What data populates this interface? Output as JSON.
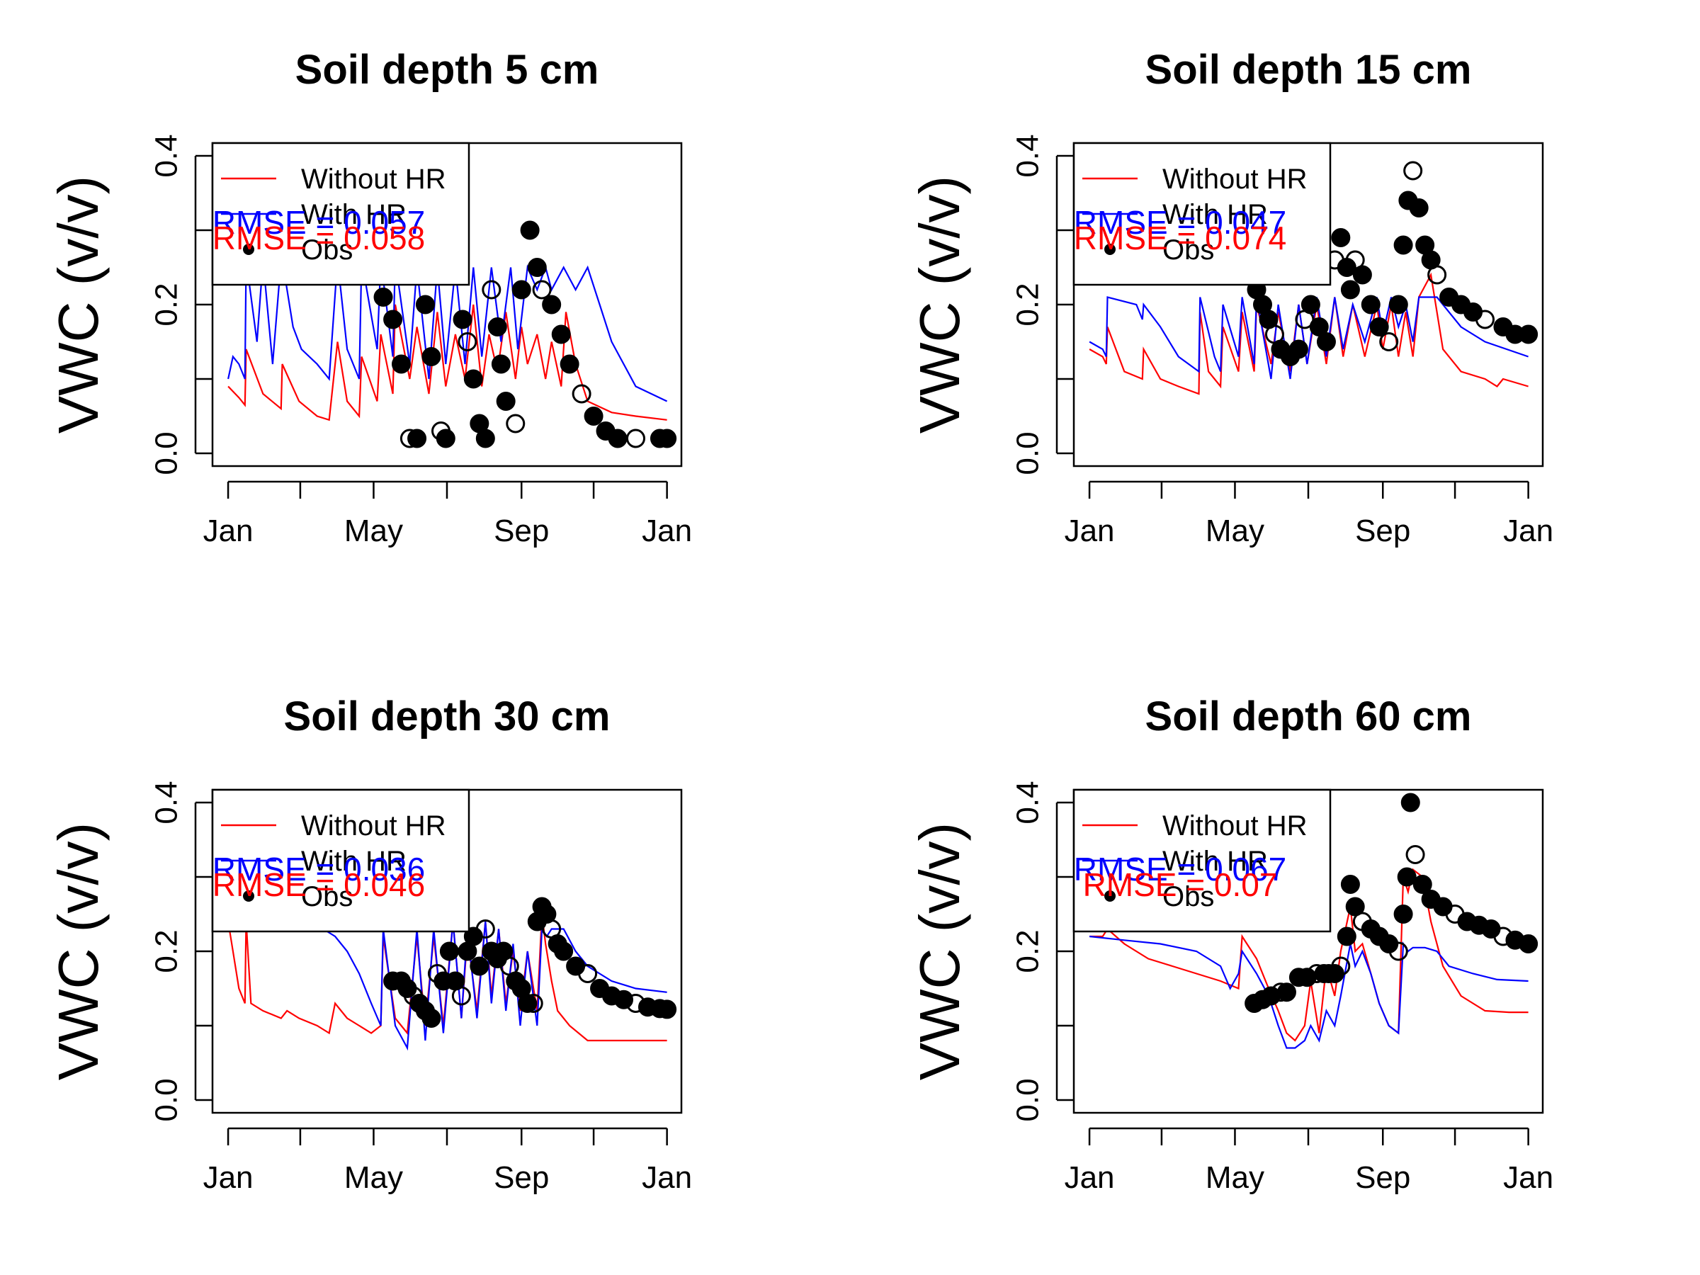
{
  "colors": {
    "without_hr": "#ff0000",
    "with_hr": "#0000ff",
    "obs": "#000000",
    "background": "#ffffff"
  },
  "legend": [
    "Without HR",
    "With HR",
    "Obs"
  ],
  "chart_data": [
    {
      "type": "line",
      "title": "Soil depth 5 cm",
      "ylabel": "VWC (v/v)",
      "xlabel": "",
      "x_ticks": [
        "Jan",
        "May",
        "Sep",
        "Jan"
      ],
      "y_ticks": [
        "0.0",
        "0.2",
        "0.4"
      ],
      "ylim": [
        0,
        0.4
      ],
      "rmse_labels": {
        "with_hr": "RMSE = 0.057",
        "without_hr": "RMSE = 0.058"
      },
      "series": [
        {
          "name": "Without HR",
          "color": "#ff0000",
          "x": [
            1,
            10,
            15,
            16,
            30,
            45,
            46,
            60,
            75,
            85,
            92,
            100,
            110,
            112,
            125,
            128,
            138,
            140,
            152,
            158,
            168,
            175,
            182,
            190,
            198,
            205,
            212,
            218,
            225,
            232,
            240,
            245,
            250,
            258,
            265,
            270,
            278,
            282,
            290,
            300,
            320,
            340,
            366
          ],
          "y": [
            0.09,
            0.075,
            0.065,
            0.14,
            0.08,
            0.06,
            0.12,
            0.07,
            0.05,
            0.045,
            0.15,
            0.07,
            0.05,
            0.13,
            0.07,
            0.16,
            0.08,
            0.2,
            0.1,
            0.17,
            0.08,
            0.19,
            0.09,
            0.16,
            0.1,
            0.2,
            0.09,
            0.16,
            0.11,
            0.19,
            0.1,
            0.17,
            0.12,
            0.16,
            0.1,
            0.15,
            0.09,
            0.19,
            0.12,
            0.07,
            0.055,
            0.05,
            0.045
          ]
        },
        {
          "name": "With HR",
          "color": "#0000ff",
          "x": [
            1,
            5,
            10,
            15,
            16,
            25,
            30,
            38,
            45,
            46,
            55,
            62,
            75,
            85,
            92,
            100,
            110,
            112,
            125,
            128,
            138,
            140,
            152,
            158,
            168,
            175,
            182,
            190,
            198,
            205,
            212,
            220,
            228,
            236,
            242,
            250,
            258,
            265,
            270,
            280,
            290,
            300,
            310,
            320,
            340,
            366
          ],
          "y": [
            0.1,
            0.13,
            0.12,
            0.1,
            0.26,
            0.15,
            0.26,
            0.12,
            0.26,
            0.26,
            0.17,
            0.14,
            0.12,
            0.1,
            0.26,
            0.14,
            0.1,
            0.26,
            0.14,
            0.26,
            0.13,
            0.26,
            0.12,
            0.25,
            0.1,
            0.25,
            0.12,
            0.25,
            0.12,
            0.25,
            0.13,
            0.25,
            0.15,
            0.25,
            0.14,
            0.25,
            0.22,
            0.25,
            0.22,
            0.25,
            0.22,
            0.25,
            0.2,
            0.15,
            0.09,
            0.07
          ]
        },
        {
          "name": "Obs",
          "color": "#000000",
          "marker": "circle",
          "x": [
            130,
            138,
            145,
            152,
            158,
            165,
            170,
            178,
            182,
            190,
            196,
            200,
            205,
            210,
            215,
            220,
            225,
            228,
            232,
            240,
            245,
            252,
            258,
            262,
            270,
            278,
            285,
            295,
            305,
            315,
            325,
            340,
            360,
            366
          ],
          "y": [
            0.21,
            0.18,
            0.12,
            0.02,
            0.02,
            0.2,
            0.13,
            0.03,
            0.02,
            0.25,
            0.18,
            0.15,
            0.1,
            0.04,
            0.02,
            0.22,
            0.17,
            0.12,
            0.07,
            0.04,
            0.22,
            0.3,
            0.25,
            0.22,
            0.2,
            0.16,
            0.12,
            0.08,
            0.05,
            0.03,
            0.02,
            0.02,
            0.02,
            0.02
          ]
        }
      ]
    },
    {
      "type": "line",
      "title": "Soil depth 15 cm",
      "ylabel": "VWC (v/v)",
      "xlabel": "",
      "x_ticks": [
        "Jan",
        "May",
        "Sep",
        "Jan"
      ],
      "y_ticks": [
        "0.0",
        "0.2",
        "0.4"
      ],
      "ylim": [
        0,
        0.4
      ],
      "rmse_labels": {
        "with_hr": "RMSE = 0.047",
        "without_hr": "RMSE = 0.074"
      },
      "series": [
        {
          "name": "Without HR",
          "color": "#ff0000",
          "x": [
            1,
            12,
            15,
            16,
            30,
            45,
            46,
            60,
            75,
            92,
            93,
            100,
            110,
            112,
            125,
            128,
            138,
            140,
            152,
            158,
            168,
            175,
            182,
            190,
            198,
            205,
            212,
            220,
            230,
            240,
            245,
            252,
            258,
            264,
            270,
            275,
            285,
            295,
            310,
            330,
            340,
            345,
            366
          ],
          "y": [
            0.14,
            0.13,
            0.12,
            0.17,
            0.11,
            0.1,
            0.14,
            0.1,
            0.09,
            0.08,
            0.19,
            0.11,
            0.09,
            0.17,
            0.11,
            0.19,
            0.11,
            0.2,
            0.12,
            0.19,
            0.11,
            0.2,
            0.12,
            0.2,
            0.12,
            0.21,
            0.13,
            0.2,
            0.13,
            0.2,
            0.14,
            0.2,
            0.13,
            0.19,
            0.13,
            0.21,
            0.24,
            0.14,
            0.11,
            0.1,
            0.09,
            0.1,
            0.09
          ]
        },
        {
          "name": "With HR",
          "color": "#0000ff",
          "x": [
            1,
            12,
            15,
            16,
            40,
            45,
            46,
            60,
            75,
            92,
            93,
            105,
            110,
            112,
            125,
            128,
            138,
            140,
            152,
            158,
            168,
            175,
            182,
            190,
            198,
            205,
            212,
            220,
            230,
            240,
            245,
            252,
            258,
            264,
            270,
            275,
            290,
            310,
            330,
            366
          ],
          "y": [
            0.15,
            0.14,
            0.13,
            0.21,
            0.2,
            0.18,
            0.2,
            0.17,
            0.13,
            0.11,
            0.21,
            0.13,
            0.11,
            0.2,
            0.13,
            0.21,
            0.12,
            0.21,
            0.1,
            0.2,
            0.1,
            0.2,
            0.12,
            0.21,
            0.13,
            0.21,
            0.14,
            0.2,
            0.15,
            0.21,
            0.16,
            0.21,
            0.17,
            0.2,
            0.15,
            0.21,
            0.21,
            0.17,
            0.15,
            0.13
          ]
        },
        {
          "name": "Obs",
          "color": "#000000",
          "marker": "circle",
          "x": [
            140,
            145,
            150,
            155,
            160,
            168,
            175,
            180,
            185,
            192,
            198,
            205,
            210,
            215,
            218,
            222,
            228,
            235,
            242,
            250,
            258,
            262,
            266,
            270,
            275,
            280,
            285,
            290,
            300,
            310,
            320,
            330,
            345,
            355,
            366
          ],
          "y": [
            0.22,
            0.2,
            0.18,
            0.16,
            0.14,
            0.13,
            0.14,
            0.18,
            0.2,
            0.17,
            0.15,
            0.26,
            0.29,
            0.25,
            0.22,
            0.26,
            0.24,
            0.2,
            0.17,
            0.15,
            0.2,
            0.28,
            0.34,
            0.38,
            0.33,
            0.28,
            0.26,
            0.24,
            0.21,
            0.2,
            0.19,
            0.18,
            0.17,
            0.16,
            0.16
          ]
        }
      ]
    },
    {
      "type": "line",
      "title": "Soil depth 30 cm",
      "ylabel": "VWC (v/v)",
      "xlabel": "",
      "x_ticks": [
        "Jan",
        "May",
        "Sep",
        "Jan"
      ],
      "y_ticks": [
        "0.0",
        "0.2",
        "0.4"
      ],
      "ylim": [
        0,
        0.4
      ],
      "rmse_labels": {
        "with_hr": "RMSE = 0.036",
        "without_hr": "RMSE = 0.046"
      },
      "series": [
        {
          "name": "Without HR",
          "color": "#ff0000",
          "x": [
            1,
            5,
            10,
            15,
            16,
            20,
            30,
            45,
            50,
            60,
            75,
            85,
            90,
            100,
            110,
            120,
            128,
            130,
            140,
            145,
            150,
            158,
            165,
            172,
            180,
            188,
            195,
            200,
            208,
            215,
            220,
            226,
            232,
            238,
            244,
            250,
            258,
            262,
            265,
            270,
            275,
            285,
            300,
            320,
            340,
            366
          ],
          "y": [
            0.24,
            0.2,
            0.15,
            0.13,
            0.24,
            0.13,
            0.12,
            0.11,
            0.12,
            0.11,
            0.1,
            0.09,
            0.13,
            0.11,
            0.1,
            0.09,
            0.1,
            0.22,
            0.11,
            0.1,
            0.09,
            0.22,
            0.1,
            0.22,
            0.1,
            0.24,
            0.11,
            0.22,
            0.12,
            0.24,
            0.14,
            0.23,
            0.13,
            0.2,
            0.12,
            0.2,
            0.12,
            0.25,
            0.21,
            0.16,
            0.12,
            0.1,
            0.08,
            0.08,
            0.08,
            0.08
          ]
        },
        {
          "name": "With HR",
          "color": "#0000ff",
          "x": [
            80,
            90,
            100,
            110,
            120,
            128,
            130,
            140,
            150,
            158,
            165,
            172,
            180,
            188,
            195,
            200,
            208,
            215,
            220,
            226,
            232,
            238,
            244,
            250,
            258,
            262,
            266,
            270,
            280,
            290,
            300,
            320,
            340,
            366
          ],
          "y": [
            0.23,
            0.22,
            0.2,
            0.17,
            0.13,
            0.1,
            0.23,
            0.1,
            0.07,
            0.23,
            0.08,
            0.23,
            0.09,
            0.24,
            0.11,
            0.23,
            0.11,
            0.24,
            0.13,
            0.23,
            0.12,
            0.21,
            0.1,
            0.2,
            0.1,
            0.23,
            0.22,
            0.23,
            0.23,
            0.2,
            0.18,
            0.16,
            0.15,
            0.145
          ]
        },
        {
          "name": "Obs",
          "color": "#000000",
          "marker": "circle",
          "x": [
            138,
            145,
            150,
            155,
            160,
            165,
            170,
            175,
            180,
            185,
            190,
            195,
            200,
            205,
            210,
            215,
            220,
            225,
            230,
            235,
            240,
            245,
            250,
            255,
            258,
            262,
            266,
            270,
            275,
            280,
            290,
            300,
            310,
            320,
            330,
            340,
            350,
            360,
            366
          ],
          "y": [
            0.16,
            0.16,
            0.15,
            0.14,
            0.13,
            0.12,
            0.11,
            0.17,
            0.16,
            0.2,
            0.16,
            0.14,
            0.2,
            0.22,
            0.18,
            0.23,
            0.2,
            0.19,
            0.2,
            0.18,
            0.16,
            0.15,
            0.13,
            0.13,
            0.24,
            0.26,
            0.25,
            0.23,
            0.21,
            0.2,
            0.18,
            0.17,
            0.15,
            0.14,
            0.135,
            0.13,
            0.125,
            0.123,
            0.122
          ]
        }
      ]
    },
    {
      "type": "line",
      "title": "Soil depth 60 cm",
      "ylabel": "VWC (v/v)",
      "xlabel": "",
      "x_ticks": [
        "Jan",
        "May",
        "Sep",
        "Jan"
      ],
      "y_ticks": [
        "0.0",
        "0.2",
        "0.4"
      ],
      "ylim": [
        0,
        0.4
      ],
      "rmse_labels": {
        "with_hr": "RMSE = 0.067",
        "without_hr": "RMSE = 0.07"
      },
      "series": [
        {
          "name": "Without HR",
          "color": "#ff0000",
          "x": [
            1,
            12,
            16,
            30,
            50,
            70,
            90,
            110,
            125,
            128,
            140,
            150,
            158,
            165,
            172,
            180,
            185,
            192,
            198,
            205,
            210,
            218,
            222,
            228,
            235,
            242,
            250,
            258,
            262,
            266,
            270,
            278,
            285,
            295,
            310,
            330,
            350,
            366
          ],
          "y": [
            0.22,
            0.22,
            0.23,
            0.21,
            0.19,
            0.18,
            0.17,
            0.16,
            0.15,
            0.22,
            0.19,
            0.15,
            0.12,
            0.09,
            0.08,
            0.1,
            0.16,
            0.09,
            0.18,
            0.14,
            0.2,
            0.26,
            0.2,
            0.21,
            0.17,
            0.13,
            0.1,
            0.09,
            0.3,
            0.28,
            0.31,
            0.3,
            0.24,
            0.18,
            0.14,
            0.12,
            0.118,
            0.118
          ]
        },
        {
          "name": "With HR",
          "color": "#0000ff",
          "x": [
            1,
            30,
            60,
            90,
            110,
            118,
            125,
            128,
            140,
            150,
            158,
            165,
            172,
            180,
            185,
            192,
            198,
            205,
            210,
            218,
            222,
            228,
            235,
            242,
            250,
            258,
            262,
            266,
            270,
            280,
            290,
            300,
            320,
            340,
            366
          ],
          "y": [
            0.22,
            0.215,
            0.21,
            0.2,
            0.18,
            0.15,
            0.17,
            0.2,
            0.17,
            0.14,
            0.1,
            0.07,
            0.07,
            0.08,
            0.1,
            0.08,
            0.12,
            0.1,
            0.14,
            0.21,
            0.18,
            0.2,
            0.17,
            0.13,
            0.1,
            0.09,
            0.21,
            0.2,
            0.205,
            0.205,
            0.2,
            0.18,
            0.17,
            0.162,
            0.16
          ]
        },
        {
          "name": "Obs",
          "color": "#000000",
          "marker": "circle",
          "x": [
            138,
            145,
            152,
            160,
            165,
            175,
            182,
            190,
            196,
            200,
            205,
            210,
            215,
            218,
            222,
            228,
            235,
            242,
            250,
            258,
            262,
            265,
            268,
            272,
            278,
            285,
            295,
            305,
            315,
            325,
            335,
            345,
            355,
            366
          ],
          "y": [
            0.13,
            0.135,
            0.14,
            0.145,
            0.145,
            0.165,
            0.165,
            0.17,
            0.17,
            0.17,
            0.17,
            0.18,
            0.22,
            0.29,
            0.26,
            0.24,
            0.23,
            0.22,
            0.21,
            0.2,
            0.25,
            0.3,
            0.4,
            0.33,
            0.29,
            0.27,
            0.26,
            0.25,
            0.24,
            0.235,
            0.23,
            0.22,
            0.215,
            0.21
          ]
        }
      ]
    }
  ]
}
